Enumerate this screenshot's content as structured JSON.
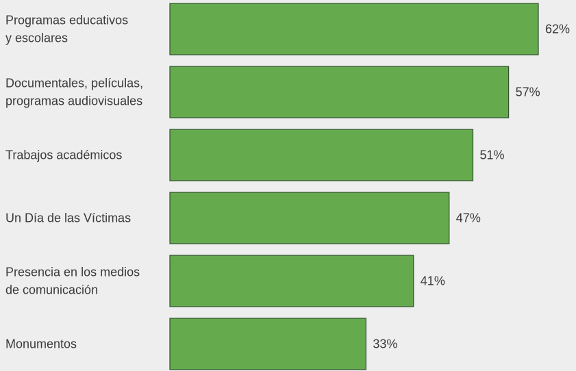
{
  "chart_data": {
    "type": "bar",
    "orientation": "horizontal",
    "categories": [
      [
        "Programas educativos",
        "y escolares"
      ],
      [
        "Documentales, películas,",
        "programas audiovisuales"
      ],
      [
        "Trabajos académicos"
      ],
      [
        "Un Día de las Víctimas"
      ],
      [
        "Presencia en los medios",
        "de comunicación"
      ],
      [
        "Monumentos"
      ]
    ],
    "values": [
      62,
      57,
      51,
      47,
      41,
      33
    ],
    "value_labels": [
      "62%",
      "57%",
      "51%",
      "47%",
      "41%",
      "33%"
    ],
    "unit": "%",
    "xlim": [
      0,
      100
    ],
    "grid": false,
    "legend": "none",
    "colors": {
      "bar_fill": "#66aa4e",
      "bar_stroke": "#2f4f2f",
      "text": "#3a3a3a",
      "background": "#eeeeee"
    }
  }
}
